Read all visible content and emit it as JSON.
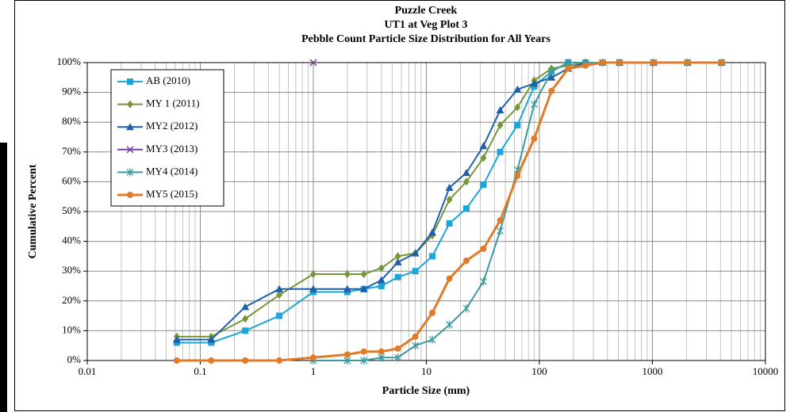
{
  "chart_data": {
    "type": "line",
    "title": [
      "Puzzle Creek",
      "UT1 at Veg Plot 3",
      "Pebble Count Particle Size Distribution for All Years"
    ],
    "x_label": "Particle Size (mm)",
    "y_label": "Cumulative Percent",
    "x": [
      0.062,
      0.125,
      0.25,
      0.5,
      1,
      2,
      2.8,
      4,
      5.6,
      8,
      11.3,
      16,
      22.6,
      32,
      45,
      64,
      90,
      128,
      180,
      256,
      362,
      512,
      1024,
      2048,
      4096
    ],
    "series": [
      {
        "name": "AB (2010)",
        "color": "#1aa6d9",
        "marker": "square",
        "values": [
          6,
          6,
          10,
          15,
          23,
          23,
          24,
          25,
          28,
          30,
          35,
          46,
          51,
          59,
          70,
          79,
          92,
          97,
          100,
          100,
          100,
          100,
          100,
          100,
          100
        ]
      },
      {
        "name": "MY 1 (2011)",
        "color": "#76963a",
        "marker": "diamond",
        "values": [
          8,
          8,
          14,
          22,
          29,
          29,
          29,
          31,
          35,
          36,
          42,
          54,
          60,
          68,
          79,
          85,
          94,
          98,
          99,
          100,
          100,
          100,
          100,
          100,
          100
        ]
      },
      {
        "name": "MY2 (2012)",
        "color": "#1f5fa8",
        "marker": "triangle",
        "values": [
          7,
          7,
          18,
          24,
          24,
          24,
          24,
          27,
          33,
          36,
          43,
          58,
          63,
          72,
          84,
          91,
          93,
          95,
          98,
          100,
          100,
          100,
          100,
          100,
          100
        ]
      },
      {
        "name": "MY3 (2013)",
        "color": "#7a3fa0",
        "marker": "x",
        "values": [
          null,
          null,
          null,
          null,
          100,
          null,
          null,
          null,
          null,
          null,
          null,
          null,
          null,
          null,
          null,
          null,
          null,
          null,
          null,
          null,
          null,
          null,
          null,
          null,
          null
        ]
      },
      {
        "name": "MY4 (2014)",
        "color": "#3a9aa0",
        "marker": "star",
        "values": [
          null,
          null,
          null,
          null,
          0,
          0,
          0,
          1,
          1,
          5,
          7,
          12,
          17.5,
          26.5,
          43.5,
          64,
          86,
          97,
          100,
          100,
          100,
          100,
          100,
          100,
          100
        ]
      },
      {
        "name": "MY5 (2015)",
        "color": "#e07b2a",
        "marker": "circle",
        "values": [
          0,
          0,
          0,
          0,
          1,
          2,
          3,
          3,
          4,
          8,
          16,
          27.5,
          33.5,
          37.5,
          47,
          62,
          74.5,
          90.5,
          98,
          99,
          100,
          100,
          100,
          100,
          100
        ]
      }
    ],
    "x_log": true,
    "xlim": [
      0.01,
      10000
    ],
    "xticks": [
      0.01,
      0.1,
      1,
      10,
      100,
      1000,
      10000
    ],
    "ylim": [
      0,
      100
    ],
    "yticks": [
      {
        "value": 0,
        "label": "0%"
      },
      {
        "value": 10,
        "label": "10%"
      },
      {
        "value": 20,
        "label": "20%"
      },
      {
        "value": 30,
        "label": "30%"
      },
      {
        "value": 40,
        "label": "40%"
      },
      {
        "value": 50,
        "label": "50%"
      },
      {
        "value": 60,
        "label": "60%"
      },
      {
        "value": 70,
        "label": "70%"
      },
      {
        "value": 80,
        "label": "80%"
      },
      {
        "value": 90,
        "label": "90%"
      },
      {
        "value": 100,
        "label": "100%"
      }
    ],
    "grid": true,
    "legend": "upper left"
  }
}
